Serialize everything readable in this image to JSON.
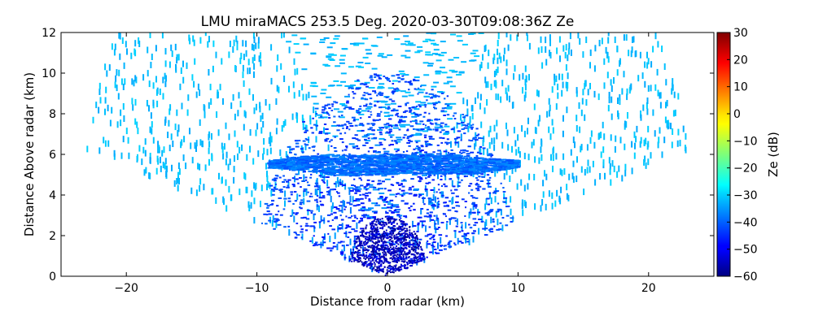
{
  "chart_data": {
    "type": "scatter",
    "title": "LMU miraMACS 253.5 Deg. 2020-03-30T09:08:36Z  Ze",
    "xlabel": "Distance from radar (km)",
    "ylabel": "Distance Above radar  (km)",
    "xlim": [
      -25,
      25
    ],
    "ylim": [
      0,
      12
    ],
    "x_ticks": [
      -20,
      -10,
      0,
      10,
      20
    ],
    "y_ticks": [
      0,
      2,
      4,
      6,
      8,
      10,
      12
    ],
    "grid": false,
    "elevation_sweep_deg": [
      15,
      165
    ],
    "max_range_km": 24,
    "colorbar": {
      "label": "Ze (dB)",
      "range": [
        -60,
        30
      ],
      "ticks": [
        30,
        20,
        10,
        0,
        -10,
        -20,
        -30,
        -40,
        -50,
        -60
      ],
      "colormap": "jet"
    },
    "features": [
      {
        "name": "background return",
        "ze_db": -32
      },
      {
        "name": "cloud layer",
        "height_km": [
          5.0,
          6.0
        ],
        "x_extent_km": [
          -9,
          10
        ],
        "ze_db": -39
      },
      {
        "name": "near-radar region",
        "max_range_km": 10,
        "ze_db": -42
      },
      {
        "name": "near-radar core",
        "max_range_km": 3,
        "ze_db": -55
      }
    ]
  }
}
